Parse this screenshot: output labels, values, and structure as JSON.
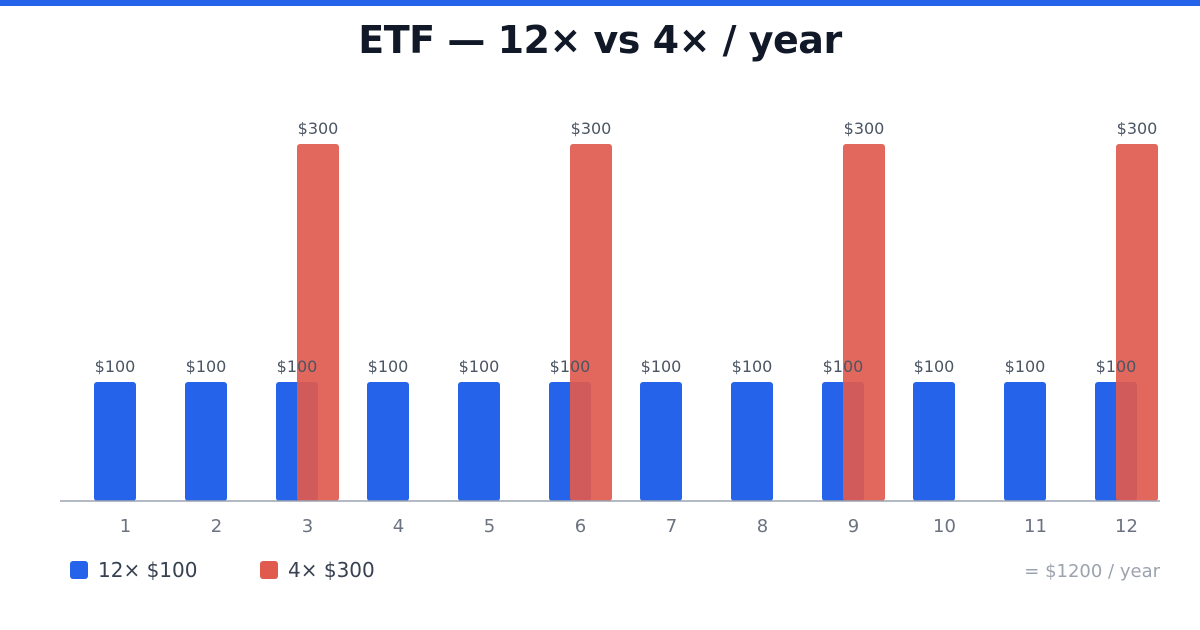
{
  "title": "ETF — 12× vs 4× / year",
  "colors": {
    "accent": "#2563eb",
    "series_a": "#2563eb",
    "series_b": "#e05a4e"
  },
  "chart_data": {
    "type": "bar",
    "title": "ETF — 12× vs 4× / year",
    "xlabel": "",
    "ylabel": "",
    "categories": [
      "1",
      "2",
      "3",
      "4",
      "5",
      "6",
      "7",
      "8",
      "9",
      "10",
      "11",
      "12"
    ],
    "ylim": [
      0,
      300
    ],
    "grid": false,
    "legend_position": "bottom-left",
    "series": [
      {
        "name": "12× $100",
        "color": "#2563eb",
        "values": [
          100,
          100,
          100,
          100,
          100,
          100,
          100,
          100,
          100,
          100,
          100,
          100
        ],
        "labels": [
          "$100",
          "$100",
          "$100",
          "$100",
          "$100",
          "$100",
          "$100",
          "$100",
          "$100",
          "$100",
          "$100",
          "$100"
        ]
      },
      {
        "name": "4× $300",
        "color": "#e05a4e",
        "values": [
          null,
          null,
          300,
          null,
          null,
          300,
          null,
          null,
          300,
          null,
          null,
          300
        ],
        "labels": [
          null,
          null,
          "$300",
          null,
          null,
          "$300",
          null,
          null,
          "$300",
          null,
          null,
          "$300"
        ]
      }
    ]
  },
  "legend": {
    "item_a": "12× $100",
    "item_b": "4× $300"
  },
  "note": "= $1200 / year"
}
